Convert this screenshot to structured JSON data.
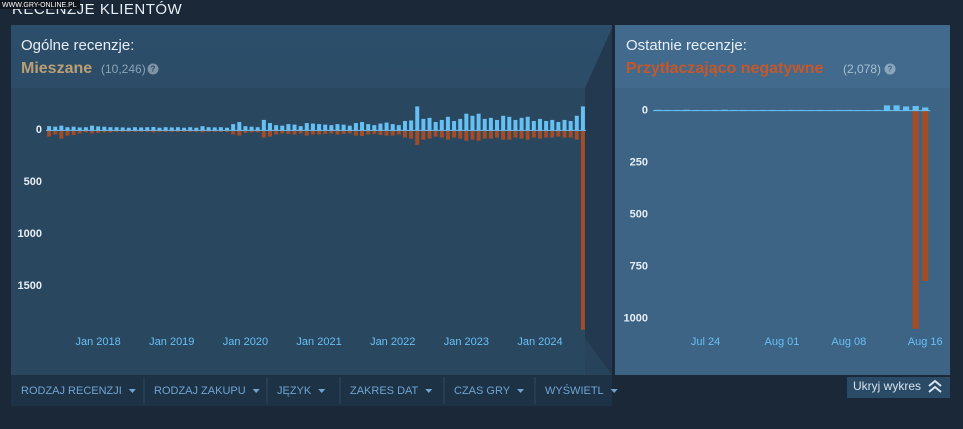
{
  "watermark": "WWW.GRY-ONLINE.PL",
  "header": {
    "title": "RECENZJE KLIENTÓW"
  },
  "summaries": [
    {
      "label": "Ogólne recenzje:",
      "rating": "Mieszane",
      "count": "(10,246)",
      "help": "?"
    },
    {
      "label": "Ostatnie recenzje:",
      "rating": "Przytłaczająco negatywne",
      "count": "(2,078)",
      "help": "?"
    }
  ],
  "chart_data": [
    {
      "type": "bar",
      "categories": [
        null,
        null,
        null,
        null,
        null,
        null,
        null,
        null,
        "Jan 2018",
        null,
        null,
        null,
        null,
        null,
        null,
        null,
        null,
        null,
        null,
        null,
        "Jan 2019",
        null,
        null,
        null,
        null,
        null,
        null,
        null,
        null,
        null,
        null,
        null,
        "Jan 2020",
        null,
        null,
        null,
        null,
        null,
        null,
        null,
        null,
        null,
        null,
        null,
        "Jan 2021",
        null,
        null,
        null,
        null,
        null,
        null,
        null,
        null,
        null,
        null,
        null,
        "Jan 2022",
        null,
        null,
        null,
        null,
        null,
        null,
        null,
        null,
        null,
        null,
        null,
        "Jan 2023",
        null,
        null,
        null,
        null,
        null,
        null,
        null,
        null,
        null,
        null,
        null,
        "Jan 2024",
        null,
        null,
        null,
        null,
        null,
        null,
        null
      ],
      "series": [
        {
          "color": "#66c0f4",
          "values": [
            40,
            35,
            45,
            30,
            35,
            28,
            30,
            45,
            38,
            35,
            30,
            30,
            28,
            25,
            30,
            28,
            30,
            32,
            25,
            30,
            28,
            30,
            25,
            30,
            25,
            40,
            30,
            28,
            30,
            25,
            60,
            80,
            40,
            35,
            30,
            100,
            70,
            50,
            45,
            60,
            55,
            40,
            70,
            65,
            60,
            55,
            50,
            60,
            55,
            45,
            70,
            80,
            60,
            50,
            65,
            75,
            60,
            50,
            90,
            95,
            230,
            110,
            120,
            80,
            100,
            130,
            90,
            110,
            160,
            140,
            160,
            110,
            120,
            100,
            140,
            130,
            100,
            120,
            130,
            90,
            110,
            90,
            100,
            80,
            100,
            90,
            140,
            230
          ]
        },
        {
          "color": "#a34c25",
          "values": [
            60,
            40,
            80,
            50,
            45,
            30,
            20,
            30,
            25,
            20,
            20,
            15,
            15,
            15,
            15,
            15,
            15,
            20,
            15,
            15,
            15,
            15,
            15,
            15,
            15,
            20,
            15,
            15,
            15,
            15,
            40,
            50,
            25,
            20,
            20,
            70,
            60,
            40,
            30,
            35,
            40,
            30,
            50,
            40,
            40,
            35,
            30,
            40,
            35,
            30,
            50,
            55,
            40,
            35,
            45,
            50,
            50,
            40,
            70,
            80,
            140,
            90,
            80,
            60,
            70,
            90,
            70,
            80,
            100,
            90,
            100,
            80,
            80,
            70,
            90,
            90,
            70,
            80,
            90,
            70,
            80,
            70,
            70,
            60,
            70,
            70,
            90,
            1920
          ]
        }
      ],
      "ylim": [
        -340,
        1970
      ],
      "yticks": [
        0,
        500,
        1000,
        1500
      ]
    },
    {
      "type": "bar",
      "categories": [
        null,
        null,
        null,
        null,
        null,
        "Jul 24",
        null,
        null,
        null,
        null,
        null,
        null,
        null,
        "Aug 01",
        null,
        null,
        null,
        null,
        null,
        null,
        "Aug 08",
        null,
        null,
        null,
        null,
        null,
        null,
        null,
        "Aug 16"
      ],
      "series": [
        {
          "color": "#66c0f4",
          "values": [
            4,
            3,
            3,
            4,
            3,
            2,
            3,
            4,
            3,
            3,
            2,
            3,
            3,
            2,
            3,
            3,
            2,
            3,
            2,
            3,
            3,
            2,
            2,
            3,
            25,
            25,
            20,
            22,
            15
          ]
        },
        {
          "color": "#a34c25",
          "values": [
            1,
            1,
            1,
            1,
            1,
            0,
            1,
            1,
            1,
            0,
            1,
            1,
            1,
            0,
            1,
            1,
            0,
            1,
            0,
            1,
            1,
            0,
            1,
            1,
            2,
            3,
            2,
            1050,
            820
          ]
        }
      ],
      "ylim": [
        -75,
        1080
      ],
      "yticks": [
        0,
        250,
        500,
        750,
        1000
      ]
    }
  ],
  "filters": [
    "RODZAJ RECENZJI",
    "RODZAJ ZAKUPU",
    "JĘZYK",
    "ZAKRES DAT",
    "CZAS GRY",
    "WYŚWIETL"
  ],
  "toggle": "Ukryj wykres"
}
